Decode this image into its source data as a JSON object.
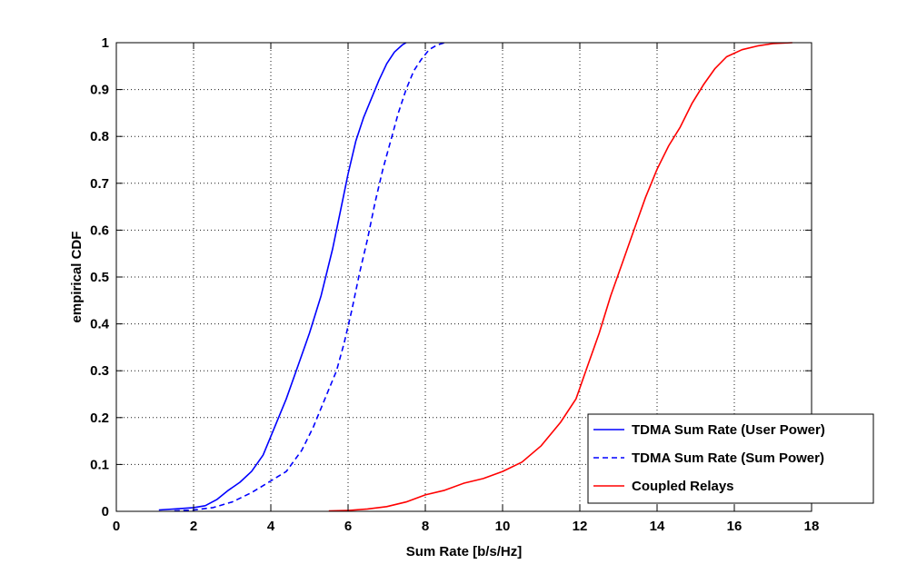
{
  "chart_data": {
    "type": "line",
    "title": "",
    "xlabel": "Sum Rate [b/s/Hz]",
    "ylabel": "empirical CDF",
    "xlim": [
      0,
      18
    ],
    "ylim": [
      0,
      1
    ],
    "xticks": [
      "0",
      "2",
      "4",
      "6",
      "8",
      "10",
      "12",
      "14",
      "16",
      "18"
    ],
    "yticks": [
      "0",
      "0.1",
      "0.2",
      "0.3",
      "0.4",
      "0.5",
      "0.6",
      "0.7",
      "0.8",
      "0.9",
      "1"
    ],
    "grid": true,
    "legend_position": "bottom-right",
    "series": [
      {
        "name": "TDMA Sum Rate (User Power)",
        "color": "#0000ff",
        "style": "solid",
        "x": [
          1.1,
          1.5,
          2.0,
          2.3,
          2.6,
          2.9,
          3.2,
          3.5,
          3.8,
          4.1,
          4.4,
          4.7,
          5.0,
          5.3,
          5.6,
          5.8,
          6.0,
          6.2,
          6.4,
          6.6,
          6.8,
          7.0,
          7.2,
          7.4,
          7.5
        ],
        "y": [
          0.003,
          0.005,
          0.008,
          0.012,
          0.025,
          0.045,
          0.062,
          0.085,
          0.12,
          0.18,
          0.24,
          0.31,
          0.38,
          0.46,
          0.56,
          0.64,
          0.72,
          0.79,
          0.84,
          0.88,
          0.92,
          0.955,
          0.98,
          0.995,
          1.0
        ]
      },
      {
        "name": "TDMA Sum Rate (Sum Power)",
        "color": "#0000ff",
        "style": "dashed",
        "x": [
          1.5,
          2.0,
          2.5,
          3.0,
          3.5,
          4.0,
          4.4,
          4.8,
          5.1,
          5.4,
          5.7,
          5.9,
          6.1,
          6.3,
          6.5,
          6.7,
          6.9,
          7.1,
          7.3,
          7.5,
          7.7,
          7.9,
          8.1,
          8.3,
          8.5
        ],
        "y": [
          0.001,
          0.003,
          0.008,
          0.02,
          0.04,
          0.065,
          0.085,
          0.13,
          0.18,
          0.24,
          0.3,
          0.36,
          0.43,
          0.51,
          0.58,
          0.66,
          0.73,
          0.79,
          0.85,
          0.9,
          0.94,
          0.965,
          0.985,
          0.995,
          1.0
        ]
      },
      {
        "name": "Coupled Relays",
        "color": "#ff0000",
        "style": "solid",
        "x": [
          5.5,
          6.0,
          6.5,
          7.0,
          7.5,
          8.0,
          8.5,
          9.0,
          9.5,
          10.0,
          10.5,
          11.0,
          11.5,
          11.9,
          12.2,
          12.5,
          12.8,
          13.1,
          13.4,
          13.7,
          14.0,
          14.3,
          14.6,
          14.9,
          15.2,
          15.5,
          15.8,
          16.2,
          16.6,
          17.0,
          17.5
        ],
        "y": [
          0.001,
          0.002,
          0.005,
          0.01,
          0.02,
          0.035,
          0.045,
          0.06,
          0.07,
          0.085,
          0.105,
          0.14,
          0.19,
          0.24,
          0.31,
          0.38,
          0.46,
          0.53,
          0.6,
          0.67,
          0.73,
          0.78,
          0.82,
          0.87,
          0.91,
          0.945,
          0.97,
          0.985,
          0.993,
          0.998,
          1.0
        ]
      }
    ]
  }
}
